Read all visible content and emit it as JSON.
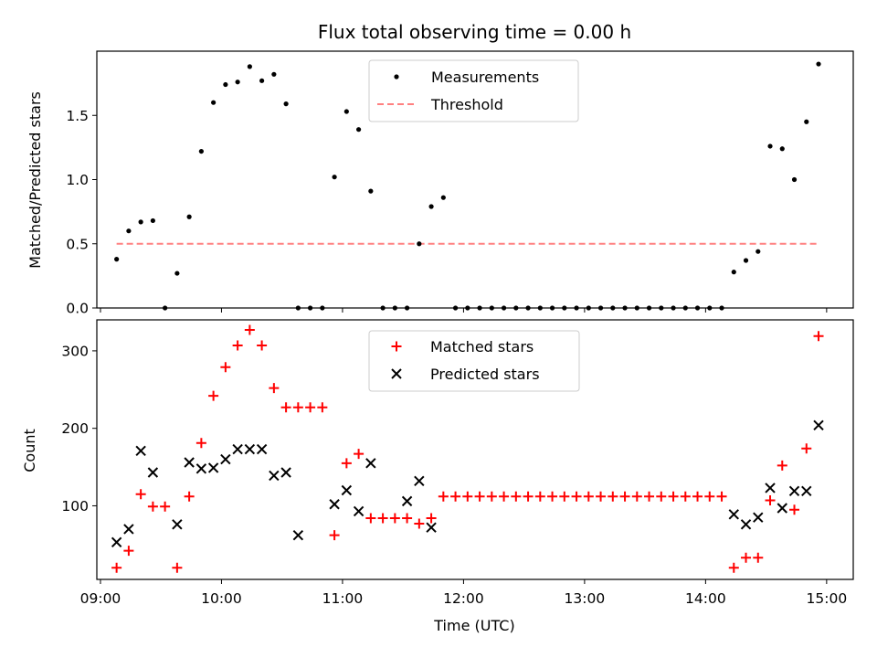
{
  "chart_data": [
    {
      "type": "scatter",
      "title": "Flux total observing time = 0.00 h",
      "xlabel": "",
      "ylabel": "Matched/Predicted stars",
      "ylim": [
        0,
        2.0
      ],
      "yticks": [
        0.0,
        0.5,
        1.0,
        1.5
      ],
      "ytick_labels": [
        "0.0",
        "0.5",
        "1.0",
        "1.5"
      ],
      "xlim_hours": [
        8.97,
        15.22
      ],
      "grid": false,
      "legend_position": "top-center",
      "colors": {
        "measurements": "#000000",
        "threshold": "#ff8080"
      },
      "series": [
        {
          "name": "Measurements",
          "x": [
            "09:08",
            "09:14",
            "09:20",
            "09:26",
            "09:32",
            "09:38",
            "09:44",
            "09:50",
            "09:56",
            "10:02",
            "10:08",
            "10:14",
            "10:20",
            "10:26",
            "10:32",
            "10:38",
            "10:44",
            "10:50",
            "10:56",
            "11:02",
            "11:08",
            "11:14",
            "11:20",
            "11:26",
            "11:32",
            "11:38",
            "11:44",
            "11:50",
            "11:56",
            "12:02",
            "12:08",
            "12:14",
            "12:20",
            "12:26",
            "12:32",
            "12:38",
            "12:44",
            "12:50",
            "12:56",
            "13:02",
            "13:08",
            "13:14",
            "13:20",
            "13:26",
            "13:32",
            "13:38",
            "13:44",
            "13:50",
            "13:56",
            "14:02",
            "14:08",
            "14:14",
            "14:20",
            "14:26",
            "14:32",
            "14:38",
            "14:44",
            "14:50",
            "14:56"
          ],
          "y": [
            0.38,
            0.6,
            0.67,
            0.68,
            0.0,
            0.27,
            0.71,
            1.22,
            1.6,
            1.74,
            1.76,
            1.88,
            1.77,
            1.82,
            1.59,
            0.0,
            0.0,
            0.0,
            1.02,
            1.53,
            1.39,
            0.91,
            0.0,
            0.0,
            0.0,
            0.5,
            0.79,
            0.86,
            0.0,
            0.0,
            0.0,
            0.0,
            0.0,
            0.0,
            0.0,
            0.0,
            0.0,
            0.0,
            0.0,
            0.0,
            0.0,
            0.0,
            0.0,
            0.0,
            0.0,
            0.0,
            0.0,
            0.0,
            0.0,
            0.0,
            0.0,
            0.28,
            0.37,
            0.44,
            1.26,
            1.24,
            1.0,
            1.45,
            1.9
          ]
        },
        {
          "name": "Threshold",
          "x": [
            "09:08",
            "14:56"
          ],
          "y": [
            0.5,
            0.5
          ]
        }
      ]
    },
    {
      "type": "scatter",
      "title": "",
      "xlabel": "Time (UTC)",
      "ylabel": "Count",
      "ylim": [
        5,
        340
      ],
      "yticks": [
        100,
        200,
        300
      ],
      "ytick_labels": [
        "100",
        "200",
        "300"
      ],
      "xticks": [
        "09:00",
        "10:00",
        "11:00",
        "12:00",
        "13:00",
        "14:00",
        "15:00"
      ],
      "xlim_hours": [
        8.97,
        15.22
      ],
      "grid": false,
      "legend_position": "top-center",
      "colors": {
        "matched": "#ff0000",
        "predicted": "#000000"
      },
      "series": [
        {
          "name": "Matched stars",
          "x": [
            "09:08",
            "09:14",
            "09:20",
            "09:26",
            "09:32",
            "09:38",
            "09:44",
            "09:50",
            "09:56",
            "10:02",
            "10:08",
            "10:14",
            "10:20",
            "10:26",
            "10:32",
            "10:38",
            "10:44",
            "10:50",
            "10:56",
            "11:02",
            "11:08",
            "11:14",
            "11:20",
            "11:26",
            "11:32",
            "11:38",
            "11:44",
            "11:50",
            "11:56",
            "12:02",
            "12:08",
            "12:14",
            "12:20",
            "12:26",
            "12:32",
            "12:38",
            "12:44",
            "12:50",
            "12:56",
            "13:02",
            "13:08",
            "13:14",
            "13:20",
            "13:26",
            "13:32",
            "13:38",
            "13:44",
            "13:50",
            "13:56",
            "14:02",
            "14:08",
            "14:14",
            "14:20",
            "14:26",
            "14:32",
            "14:38",
            "14:44",
            "14:50",
            "14:56"
          ],
          "y": [
            20,
            42,
            115,
            99,
            99,
            20,
            112,
            181,
            242,
            279,
            307,
            327,
            307,
            252,
            227,
            227,
            227,
            227,
            62,
            155,
            167,
            84,
            84,
            84,
            84,
            77,
            84,
            112,
            112,
            112,
            112,
            112,
            112,
            112,
            112,
            112,
            112,
            112,
            112,
            112,
            112,
            112,
            112,
            112,
            112,
            112,
            112,
            112,
            112,
            112,
            112,
            20,
            33,
            33,
            107,
            152,
            95,
            174,
            319
          ]
        },
        {
          "name": "Predicted stars",
          "x": [
            "09:08",
            "09:14",
            "09:20",
            "09:26",
            "09:38",
            "09:44",
            "09:50",
            "09:56",
            "10:02",
            "10:08",
            "10:14",
            "10:20",
            "10:26",
            "10:32",
            "10:38",
            "10:56",
            "11:02",
            "11:08",
            "11:14",
            "11:32",
            "11:38",
            "11:44",
            "14:14",
            "14:20",
            "14:26",
            "14:32",
            "14:38",
            "14:44",
            "14:50",
            "14:56"
          ],
          "y": [
            53,
            70,
            171,
            143,
            76,
            156,
            148,
            149,
            160,
            173,
            173,
            173,
            139,
            143,
            62,
            102,
            120,
            93,
            155,
            106,
            132,
            72,
            89,
            76,
            85,
            123,
            97,
            119,
            119,
            204
          ]
        }
      ]
    }
  ]
}
